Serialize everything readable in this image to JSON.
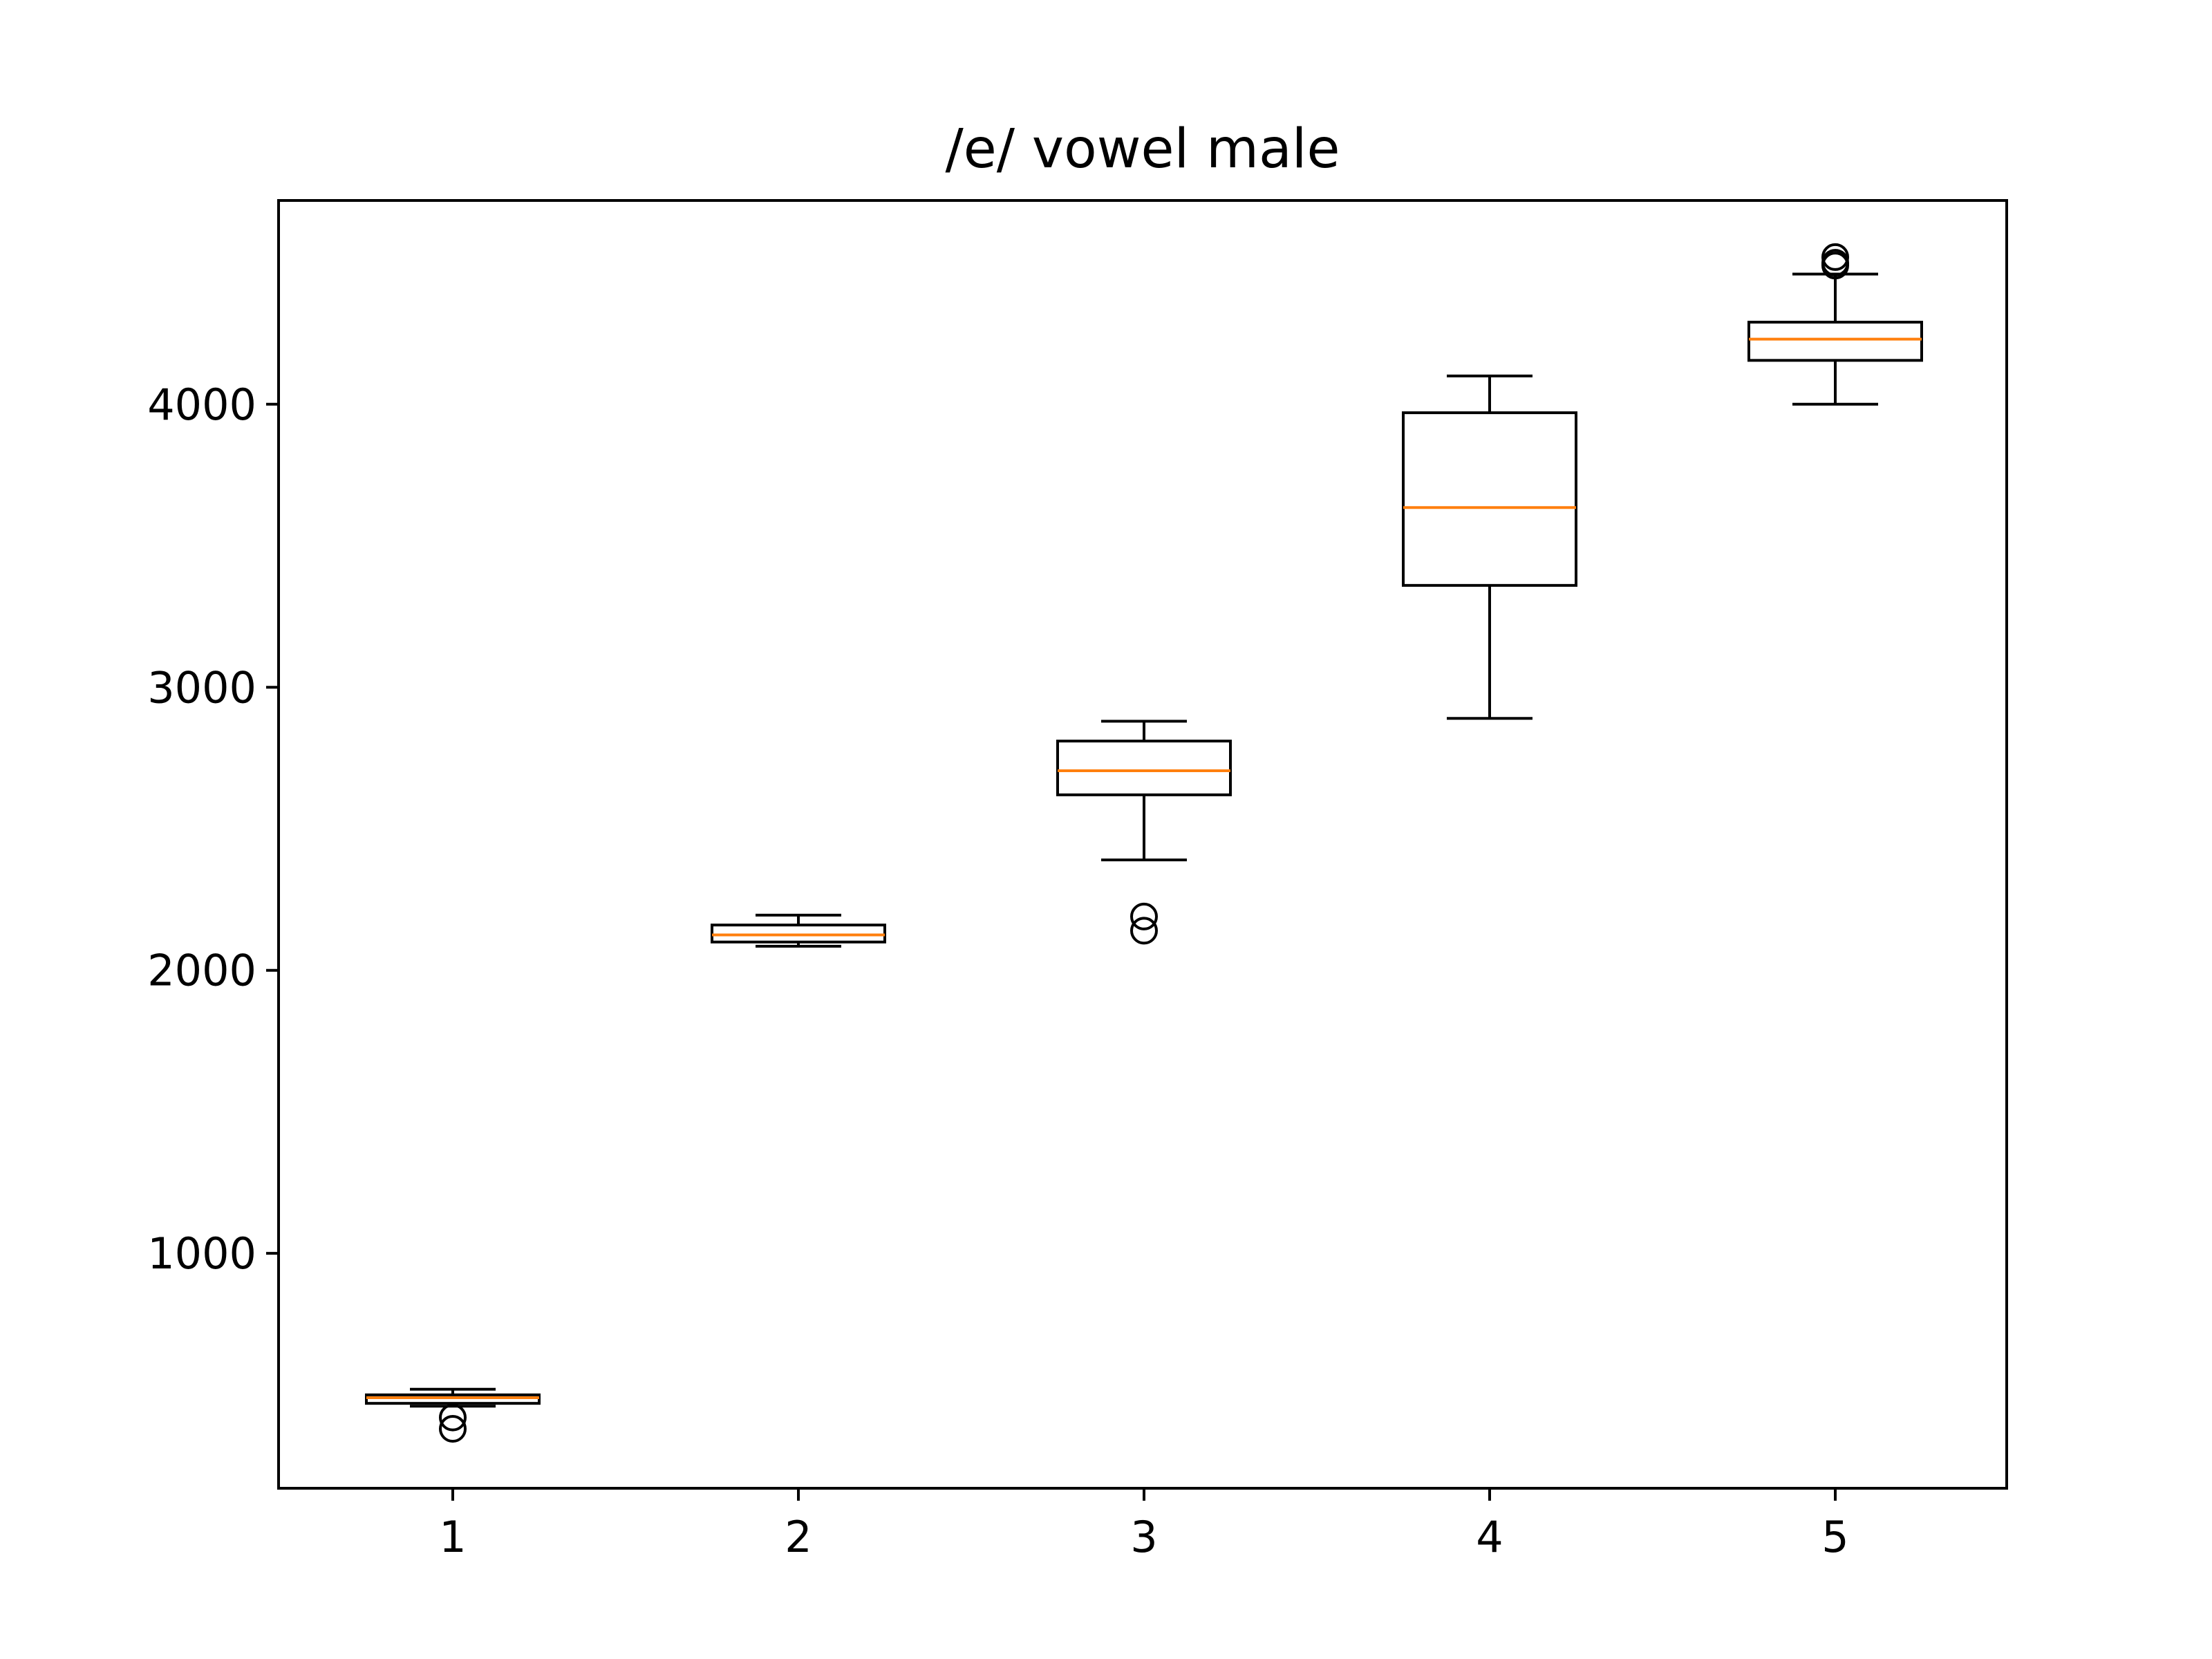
{
  "chart_data": {
    "type": "boxplot",
    "title": "/e/ vowel male",
    "xlabel": "",
    "ylabel": "",
    "categories": [
      "1",
      "2",
      "3",
      "4",
      "5"
    ],
    "ylim": [
      170,
      4720
    ],
    "yticks": [
      1000,
      2000,
      3000,
      4000
    ],
    "grid": false,
    "box_color": "#000000",
    "median_color": "#ff7f0e",
    "boxes": [
      {
        "label": "1",
        "whisker_low": 460,
        "q1": 470,
        "median": 490,
        "q3": 500,
        "whisker_high": 520,
        "outliers": [
          420,
          380
        ]
      },
      {
        "label": "2",
        "whisker_low": 2085,
        "q1": 2100,
        "median": 2125,
        "q3": 2160,
        "whisker_high": 2195,
        "outliers": []
      },
      {
        "label": "3",
        "whisker_low": 2390,
        "q1": 2620,
        "median": 2705,
        "q3": 2810,
        "whisker_high": 2880,
        "outliers": [
          2190,
          2140
        ]
      },
      {
        "label": "4",
        "whisker_low": 2890,
        "q1": 3360,
        "median": 3635,
        "q3": 3970,
        "whisker_high": 4100,
        "outliers": []
      },
      {
        "label": "5",
        "whisker_low": 4000,
        "q1": 4155,
        "median": 4230,
        "q3": 4290,
        "whisker_high": 4460,
        "outliers": [
          4520,
          4500,
          4490
        ]
      }
    ]
  }
}
